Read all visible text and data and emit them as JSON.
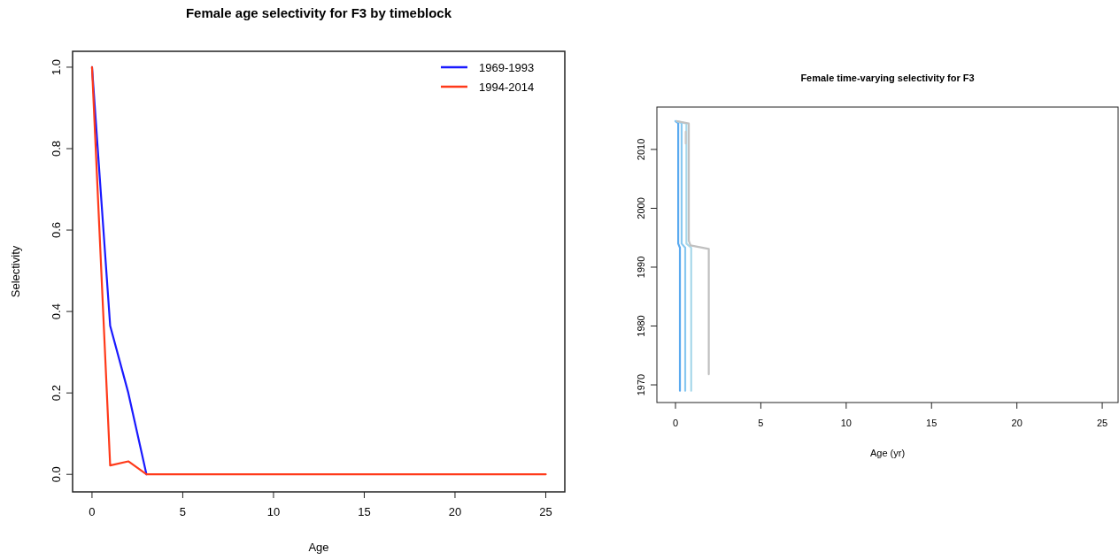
{
  "chart_data": [
    {
      "type": "line",
      "title": "Female age selectivity for F3 by timeblock",
      "xlabel": "Age",
      "ylabel": "Selectivity",
      "xlim": [
        -1.07,
        26.05
      ],
      "ylim": [
        -0.043,
        1.039
      ],
      "xticks": [
        0,
        5,
        10,
        15,
        20,
        25
      ],
      "yticks": [
        {
          "value": 0,
          "label": "0.0"
        },
        0.2,
        0.4,
        0.6,
        0.8,
        {
          "value": 1,
          "label": "1.0"
        }
      ],
      "legend": "top right",
      "grid": false,
      "x": [
        0,
        1,
        2,
        3,
        4,
        5,
        6,
        7,
        8,
        9,
        10,
        11,
        12,
        13,
        14,
        15,
        16,
        17,
        18,
        19,
        20,
        21,
        22,
        23,
        24,
        25
      ],
      "series": [
        {
          "name": "1969-1993",
          "color": "#1a1aff",
          "values": [
            1,
            0.365,
            0.2,
            0,
            null,
            null,
            null,
            null,
            null,
            null,
            null,
            null,
            null,
            null,
            null,
            null,
            null,
            null,
            null,
            null,
            null,
            null,
            null,
            null,
            null,
            null
          ]
        },
        {
          "name": "1994-2014",
          "color": "#ff3a1a",
          "values": [
            1,
            0.022,
            0.032,
            0,
            0,
            0,
            0,
            0,
            0,
            0,
            0,
            0,
            0,
            0,
            0,
            0,
            0,
            0,
            0,
            0,
            0,
            0,
            0,
            0,
            0,
            0
          ]
        }
      ]
    },
    {
      "type": "line",
      "title": "Female time-varying selectivity for F3",
      "xlabel": "Age (yr)",
      "xlim": [
        -1.09,
        25.93
      ],
      "ylim": [
        1967,
        2017.2
      ],
      "xticks": [
        0,
        5,
        10,
        15,
        20,
        25
      ],
      "yticks": [
        1970,
        1980,
        1990,
        2000,
        2010
      ],
      "legend": false,
      "grid": false,
      "series": [
        {
          "color": "#5aaaf0",
          "x": [
            0.26,
            0.26,
            0.16,
            0.16,
            0.0
          ],
          "values": [
            1969,
            1993.3,
            1994,
            2014.5,
            2014.8
          ]
        },
        {
          "color": "#88c8f0",
          "x": [
            0.57,
            0.57,
            0.36,
            0.36,
            0.0
          ],
          "values": [
            1969,
            1993.3,
            1994,
            2014.5,
            2014.8
          ]
        },
        {
          "color": "#a8d8ea",
          "x": [
            0.92,
            0.92,
            0.64,
            0.64,
            0.1
          ],
          "values": [
            1969,
            1993.3,
            1994,
            2014.4,
            2014.8
          ]
        },
        {
          "color": "#c0c0c0",
          "x": [
            1.95,
            1.95,
            0.88,
            0.78,
            0.78,
            0.1
          ],
          "values": [
            1971.8,
            1993.1,
            1993.7,
            1994.5,
            2014.4,
            2014.8
          ]
        },
        {
          "color": "#c8c8c8",
          "x": [
            0.6,
            0.6
          ],
          "values": [
            2011,
            2013
          ]
        }
      ]
    }
  ]
}
